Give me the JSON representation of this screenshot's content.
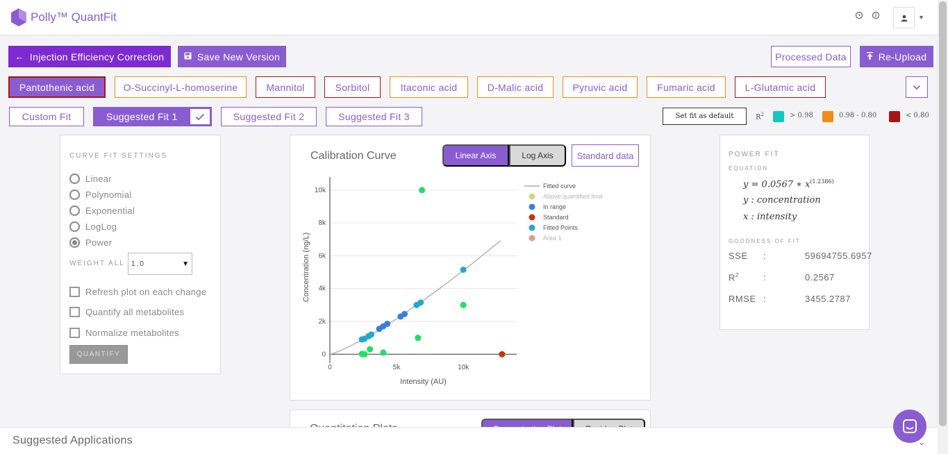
{
  "app": {
    "title": "Polly™ QuantFit",
    "history_icon": "history-icon",
    "info_icon": "info-icon",
    "user_icon": "user-icon"
  },
  "toolbar": {
    "back_label": "Injection Efficiency Correction",
    "save_label": "Save New Version",
    "processed_label": "Processed Data",
    "reupload_label": "Re-Upload"
  },
  "metabolites": [
    {
      "label": "Pantothenic acid",
      "status": "red",
      "active": true
    },
    {
      "label": "O-Succinyl-L-homoserine",
      "status": "orange"
    },
    {
      "label": "Mannitol",
      "status": "red"
    },
    {
      "label": "Sorbitol",
      "status": "red"
    },
    {
      "label": "Itaconic acid",
      "status": "orange"
    },
    {
      "label": "D-Malic acid",
      "status": "orange"
    },
    {
      "label": "Pyruvic acid",
      "status": "orange"
    },
    {
      "label": "Fumaric acid",
      "status": "orange"
    },
    {
      "label": "L-Glutamic acid",
      "status": "red"
    }
  ],
  "fits": {
    "custom": "Custom Fit",
    "suggested1": "Suggested Fit 1",
    "suggested2": "Suggested Fit 2",
    "suggested3": "Suggested Fit 3"
  },
  "set_default_label": "Set fit as default",
  "r2_legend": {
    "label": "R",
    "sup": "2",
    "ranges": [
      {
        "label": "> 0.98",
        "color": "#13c7c0"
      },
      {
        "label": "0.98 - 0.80",
        "color": "#f28c18"
      },
      {
        "label": "< 0.80",
        "color": "#a61515"
      }
    ]
  },
  "settings": {
    "title": "CURVE FIT SETTINGS",
    "options": [
      "Linear",
      "Polynomial",
      "Exponential",
      "LogLog",
      "Power"
    ],
    "selected": "Power",
    "weight_label": "WEIGHT ALL",
    "weight_value": "1.0",
    "checks": [
      "Refresh plot on each change",
      "Quantify all metabolites",
      "Normalize metabolites"
    ],
    "quantify_label": "QUANTIFY"
  },
  "chart_panel": {
    "title": "Calibration Curve",
    "linear_label": "Linear Axis",
    "log_label": "Log Axis",
    "standard_label": "Standard data"
  },
  "chart_data": {
    "type": "scatter",
    "xlabel": "Intensity (AU)",
    "ylabel": "Concentration (ng/L)",
    "xlim": [
      0,
      14000
    ],
    "ylim": [
      -200,
      10800
    ],
    "x_ticks": [
      0,
      5000,
      10000
    ],
    "x_tick_labels": [
      "0",
      "5k",
      "10k"
    ],
    "y_ticks": [
      0,
      2000,
      4000,
      6000,
      8000,
      10000
    ],
    "y_tick_labels": [
      "0",
      "2k",
      "4k",
      "6k",
      "8k",
      "10k"
    ],
    "fitted_curve": {
      "a": 0.0567,
      "b": 1.2386,
      "x_max": 12800
    },
    "legend": [
      {
        "name": "Fitted curve",
        "color": "#aaaaaa",
        "shape": "line"
      },
      {
        "name": "Above quantified limit",
        "color": "#c7d98a",
        "shape": "dot",
        "faded": true
      },
      {
        "name": "In range",
        "color": "#3b7ddd",
        "shape": "dot"
      },
      {
        "name": "Standard",
        "color": "#cc3311",
        "shape": "dot"
      },
      {
        "name": "Fitted Points",
        "color": "#1fa8d1",
        "shape": "dot"
      },
      {
        "name": "Area 1",
        "color": "#e39b8c",
        "shape": "dot",
        "faded": true
      }
    ],
    "series": [
      {
        "name": "Area 1",
        "color": "#22dd66",
        "points": [
          [
            6900,
            10000
          ],
          [
            10000,
            3000
          ],
          [
            6600,
            1000
          ],
          [
            3000,
            300
          ],
          [
            4000,
            100
          ],
          [
            2400,
            20
          ],
          [
            2600,
            0
          ]
        ]
      },
      {
        "name": "Standard",
        "color": "#cc3311",
        "points": [
          [
            12900,
            0
          ]
        ]
      },
      {
        "name": "In range",
        "color": "#3b7ddd",
        "points": [
          [
            3700,
            1550
          ],
          [
            4000,
            1700
          ],
          [
            4300,
            1850
          ],
          [
            5300,
            2300
          ],
          [
            5600,
            2450
          ]
        ]
      },
      {
        "name": "Fitted Points",
        "color": "#1fa8d1",
        "points": [
          [
            2400,
            900
          ],
          [
            2600,
            950
          ],
          [
            2900,
            1100
          ],
          [
            3100,
            1200
          ],
          [
            6500,
            3000
          ],
          [
            6800,
            3150
          ],
          [
            10000,
            5150
          ]
        ]
      }
    ]
  },
  "power_fit": {
    "title": "POWER FIT",
    "equation_label": "EQUATION",
    "eq_main": "y = 0.0567 ∗ x",
    "eq_exp": "(1.2386)",
    "y_def": "y : concentration",
    "x_def": "x : intensity",
    "gof_label": "GOODNESS OF FIT",
    "metrics": [
      {
        "name": "SSE",
        "value": "59694755.6957"
      },
      {
        "name": "R",
        "sup": "2",
        "value": "0.2567"
      },
      {
        "name": "RMSE",
        "value": "3455.2787"
      }
    ]
  },
  "lower_panel": {
    "title": "Quantitation Plots",
    "tab1": "Concentration Plot",
    "tab2": "Residue Plot"
  },
  "bottom": {
    "title": "Suggested Applications"
  }
}
